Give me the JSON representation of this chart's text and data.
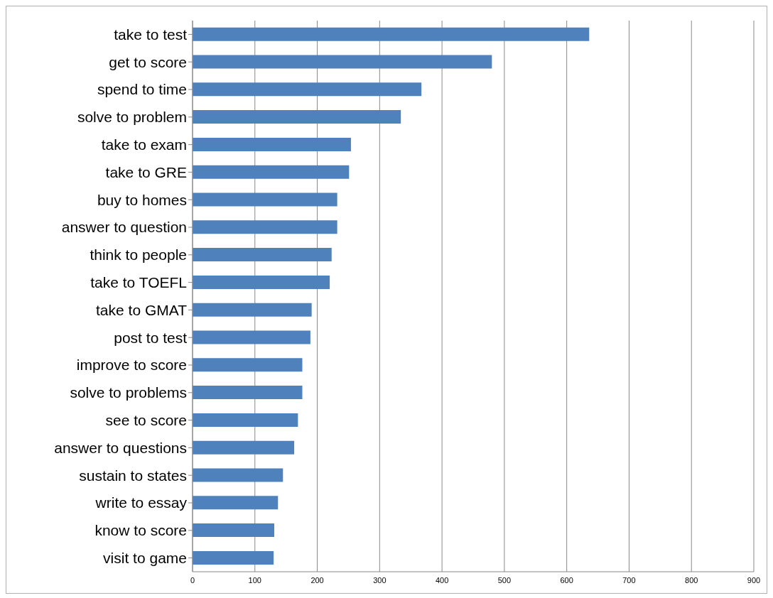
{
  "chart_data": {
    "type": "bar",
    "orientation": "horizontal",
    "categories": [
      "take to test",
      "get to score",
      "spend to time",
      "solve to problem",
      "take to exam",
      "take to GRE",
      "buy to homes",
      "answer to question",
      "think to people",
      "take to TOEFL",
      "take to GMAT",
      "post to test",
      "improve to score",
      "solve to problems",
      "see to score",
      "answer to questions",
      "sustain to states",
      "write to essay",
      "know to score",
      "visit to game"
    ],
    "values": [
      636,
      480,
      367,
      334,
      254,
      251,
      232,
      232,
      223,
      220,
      191,
      189,
      176,
      176,
      169,
      163,
      145,
      137,
      131,
      130
    ],
    "color": "#4f81bd",
    "xlim": [
      0,
      900
    ],
    "xticks": [
      0,
      100,
      200,
      300,
      400,
      500,
      600,
      700,
      800,
      900
    ],
    "grid": "x"
  }
}
